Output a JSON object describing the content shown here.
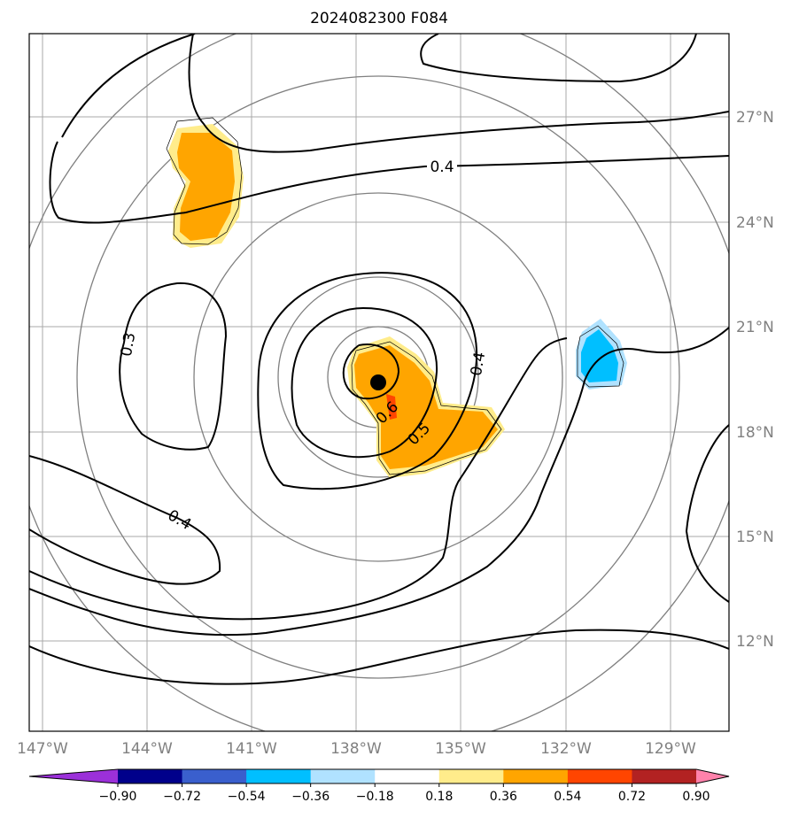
{
  "title": "2024082300 F084",
  "lon_labels": [
    "147°W",
    "144°W",
    "141°W",
    "138°W",
    "135°W",
    "132°W",
    "129°W"
  ],
  "lat_labels": [
    "27°N",
    "24°N",
    "21°N",
    "18°N",
    "15°N",
    "12°N"
  ],
  "contour_labels": [
    "0.4",
    "0.3",
    "0.4",
    "0.6",
    "0.5",
    "0.4"
  ],
  "colorbar": {
    "tick_labels": [
      "−0.90",
      "−0.72",
      "−0.54",
      "−0.36",
      "−0.18",
      "0.18",
      "0.36",
      "0.54",
      "0.72",
      "0.90"
    ],
    "colors": [
      "#9b30d9",
      "#00008b",
      "#3a5fcd",
      "#00bfff",
      "#b0e2ff",
      "#ffffff",
      "#ffec8b",
      "#ffa500",
      "#ff4500",
      "#b22222",
      "#ff82ab"
    ]
  },
  "storm_center_icon": "black-dot-icon"
}
